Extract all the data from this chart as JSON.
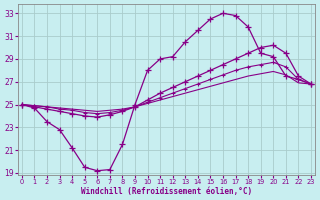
{
  "xlabel": "Windchill (Refroidissement éolien,°C)",
  "bg_color": "#c8eef0",
  "grid_color": "#aacccc",
  "line_color": "#880088",
  "xlim_min": -0.3,
  "xlim_max": 23.3,
  "ylim_min": 18.8,
  "ylim_max": 33.8,
  "xticks": [
    0,
    1,
    2,
    3,
    4,
    5,
    6,
    7,
    8,
    9,
    10,
    11,
    12,
    13,
    14,
    15,
    16,
    17,
    18,
    19,
    20,
    21,
    22,
    23
  ],
  "yticks": [
    19,
    21,
    23,
    25,
    27,
    29,
    31,
    33
  ],
  "curve1_x": [
    0,
    1,
    2,
    3,
    4,
    5,
    6,
    7,
    8,
    9,
    10,
    11,
    12,
    13,
    14,
    15,
    16,
    17,
    18,
    19,
    20,
    21,
    22,
    23
  ],
  "curve1_y": [
    25.0,
    24.7,
    23.5,
    22.8,
    21.2,
    19.5,
    19.2,
    19.3,
    21.5,
    25.0,
    28.0,
    29.0,
    29.2,
    30.5,
    31.5,
    32.5,
    33.0,
    32.8,
    31.8,
    29.5,
    29.2,
    27.5,
    27.2,
    26.8
  ],
  "curve2_x": [
    0,
    1,
    2,
    3,
    4,
    5,
    6,
    7,
    8,
    9,
    10,
    11,
    12,
    13,
    14,
    15,
    16,
    17,
    18,
    19,
    20,
    21,
    22,
    23
  ],
  "curve2_y": [
    25.0,
    24.8,
    24.6,
    24.4,
    24.2,
    24.0,
    23.9,
    24.1,
    24.4,
    24.8,
    25.4,
    26.0,
    26.5,
    27.0,
    27.5,
    28.0,
    28.5,
    29.0,
    29.5,
    30.0,
    30.2,
    29.5,
    27.5,
    26.8
  ],
  "curve3_x": [
    0,
    1,
    2,
    3,
    4,
    5,
    6,
    7,
    8,
    9,
    10,
    11,
    12,
    13,
    14,
    15,
    16,
    17,
    18,
    19,
    20,
    21,
    22,
    23
  ],
  "curve3_y": [
    25.0,
    24.9,
    24.8,
    24.6,
    24.5,
    24.3,
    24.2,
    24.3,
    24.5,
    24.8,
    25.2,
    25.6,
    26.0,
    26.4,
    26.8,
    27.2,
    27.6,
    28.0,
    28.3,
    28.5,
    28.7,
    28.3,
    27.2,
    26.8
  ],
  "curve4_x": [
    0,
    1,
    2,
    3,
    4,
    5,
    6,
    7,
    8,
    9,
    10,
    11,
    12,
    13,
    14,
    15,
    16,
    17,
    18,
    19,
    20,
    21,
    22,
    23
  ],
  "curve4_y": [
    25.0,
    24.9,
    24.8,
    24.7,
    24.6,
    24.5,
    24.4,
    24.5,
    24.6,
    24.8,
    25.1,
    25.4,
    25.7,
    26.0,
    26.3,
    26.6,
    26.9,
    27.2,
    27.5,
    27.7,
    27.9,
    27.6,
    26.9,
    26.8
  ]
}
